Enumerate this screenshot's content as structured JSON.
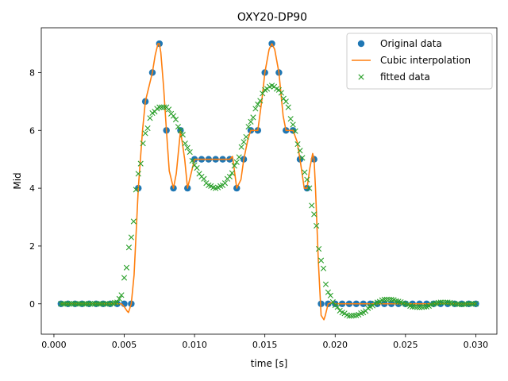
{
  "chart_data": {
    "type": "line",
    "title": "OXY20-DP90",
    "xlabel": "time [s]",
    "ylabel": "Mid",
    "xlim": [
      -0.0009,
      0.0315
    ],
    "ylim": [
      -1.05,
      9.55
    ],
    "xticks": [
      0.0,
      0.005,
      0.01,
      0.015,
      0.02,
      0.025,
      0.03
    ],
    "xtick_labels": [
      "0.000",
      "0.005",
      "0.010",
      "0.015",
      "0.020",
      "0.025",
      "0.030"
    ],
    "yticks": [
      0,
      2,
      4,
      6,
      8
    ],
    "ytick_labels": [
      "0",
      "2",
      "4",
      "6",
      "8"
    ],
    "grid": false,
    "legend_position": "top-right",
    "series": [
      {
        "name": "Original data",
        "kind": "markers",
        "marker": "circle",
        "color": "#1f77b4",
        "x": [
          0.0005,
          0.001,
          0.0015,
          0.002,
          0.0025,
          0.003,
          0.0035,
          0.004,
          0.0045,
          0.005,
          0.0055,
          0.006,
          0.0065,
          0.007,
          0.0075,
          0.008,
          0.0085,
          0.009,
          0.0095,
          0.01,
          0.0105,
          0.011,
          0.0115,
          0.012,
          0.0125,
          0.013,
          0.0135,
          0.014,
          0.0145,
          0.015,
          0.0155,
          0.016,
          0.0165,
          0.017,
          0.0175,
          0.018,
          0.0185,
          0.019,
          0.0195,
          0.02,
          0.0205,
          0.021,
          0.0215,
          0.022,
          0.0225,
          0.023,
          0.0235,
          0.024,
          0.0245,
          0.025,
          0.0255,
          0.026,
          0.0265,
          0.027,
          0.0275,
          0.028,
          0.0285,
          0.029,
          0.0295,
          0.03
        ],
        "y": [
          0,
          0,
          0,
          0,
          0,
          0,
          0,
          0,
          0,
          0,
          0,
          4,
          7,
          8,
          9,
          6,
          4,
          6,
          4,
          5,
          5,
          5,
          5,
          5,
          5,
          4,
          5,
          6,
          6,
          8,
          9,
          8,
          6,
          6,
          5,
          4,
          5,
          0,
          0,
          0,
          0,
          0,
          0,
          0,
          0,
          0,
          0,
          0,
          0,
          0,
          0,
          0,
          0,
          0,
          0,
          0,
          0,
          0,
          0,
          0
        ]
      },
      {
        "name": "Cubic interpolation",
        "kind": "line",
        "color": "#ff7f0e",
        "x": [
          0.0005,
          0.003,
          0.0048,
          0.005,
          0.0052,
          0.0053,
          0.0055,
          0.0057,
          0.006,
          0.0063,
          0.0065,
          0.0068,
          0.007,
          0.0072,
          0.0074,
          0.0075,
          0.0076,
          0.0078,
          0.008,
          0.0082,
          0.0085,
          0.0087,
          0.009,
          0.0093,
          0.0095,
          0.0098,
          0.01,
          0.0105,
          0.011,
          0.0115,
          0.012,
          0.0125,
          0.0127,
          0.013,
          0.0133,
          0.0135,
          0.0138,
          0.014,
          0.0143,
          0.0145,
          0.0148,
          0.015,
          0.0153,
          0.0155,
          0.0157,
          0.016,
          0.0163,
          0.0165,
          0.0168,
          0.017,
          0.0173,
          0.0175,
          0.0178,
          0.018,
          0.0182,
          0.0184,
          0.0185,
          0.0186,
          0.0188,
          0.019,
          0.0192,
          0.0193,
          0.0195,
          0.0198,
          0.02,
          0.03
        ],
        "y": [
          0,
          0,
          0,
          -0.1,
          -0.25,
          -0.3,
          0,
          1.0,
          4.0,
          6.0,
          7.0,
          7.6,
          8.0,
          8.6,
          9.0,
          9.0,
          8.7,
          7.5,
          6.0,
          4.6,
          4.0,
          4.5,
          6.0,
          5.0,
          4.0,
          4.6,
          5.0,
          5.0,
          5.0,
          5.0,
          5.0,
          5.0,
          5.1,
          4.0,
          4.3,
          5.0,
          5.7,
          6.0,
          6.0,
          6.0,
          7.1,
          8.0,
          8.8,
          9.0,
          8.8,
          8.0,
          6.5,
          6.0,
          6.0,
          6.0,
          5.6,
          5.0,
          4.0,
          4.0,
          4.7,
          5.2,
          5.0,
          4.0,
          1.5,
          -0.4,
          -0.55,
          -0.4,
          0,
          0.05,
          0,
          0
        ]
      },
      {
        "name": "fitted data",
        "kind": "markers",
        "marker": "x",
        "color": "#2ca02c",
        "x": [
          0.0005,
          0.0035,
          0.004,
          0.0045,
          0.0048,
          0.005,
          0.0055,
          0.006,
          0.0065,
          0.007,
          0.0075,
          0.008,
          0.0085,
          0.009,
          0.0095,
          0.01,
          0.0105,
          0.011,
          0.0115,
          0.012,
          0.0125,
          0.013,
          0.0135,
          0.014,
          0.0145,
          0.015,
          0.0155,
          0.016,
          0.0165,
          0.017,
          0.0175,
          0.018,
          0.0185,
          0.019,
          0.0195,
          0.02,
          0.0205,
          0.021,
          0.0215,
          0.022,
          0.0225,
          0.023,
          0.0235,
          0.024,
          0.0245,
          0.025,
          0.0255,
          0.026,
          0.0265,
          0.027,
          0.0275,
          0.028,
          0.0285,
          0.029,
          0.0295,
          0.03
        ],
        "y": [
          0,
          0,
          0,
          0.05,
          0.3,
          0.9,
          2.3,
          4.5,
          5.9,
          6.6,
          6.8,
          6.8,
          6.5,
          6.0,
          5.4,
          4.8,
          4.4,
          4.1,
          4.0,
          4.1,
          4.4,
          4.9,
          5.6,
          6.3,
          6.9,
          7.4,
          7.55,
          7.4,
          7.0,
          6.2,
          5.3,
          4.3,
          3.1,
          1.5,
          0.4,
          -0.05,
          -0.3,
          -0.42,
          -0.4,
          -0.3,
          -0.1,
          0.05,
          0.15,
          0.15,
          0.08,
          0,
          -0.1,
          -0.12,
          -0.1,
          0,
          0.05,
          0.05,
          0,
          -0.02,
          0,
          0
        ]
      }
    ]
  }
}
